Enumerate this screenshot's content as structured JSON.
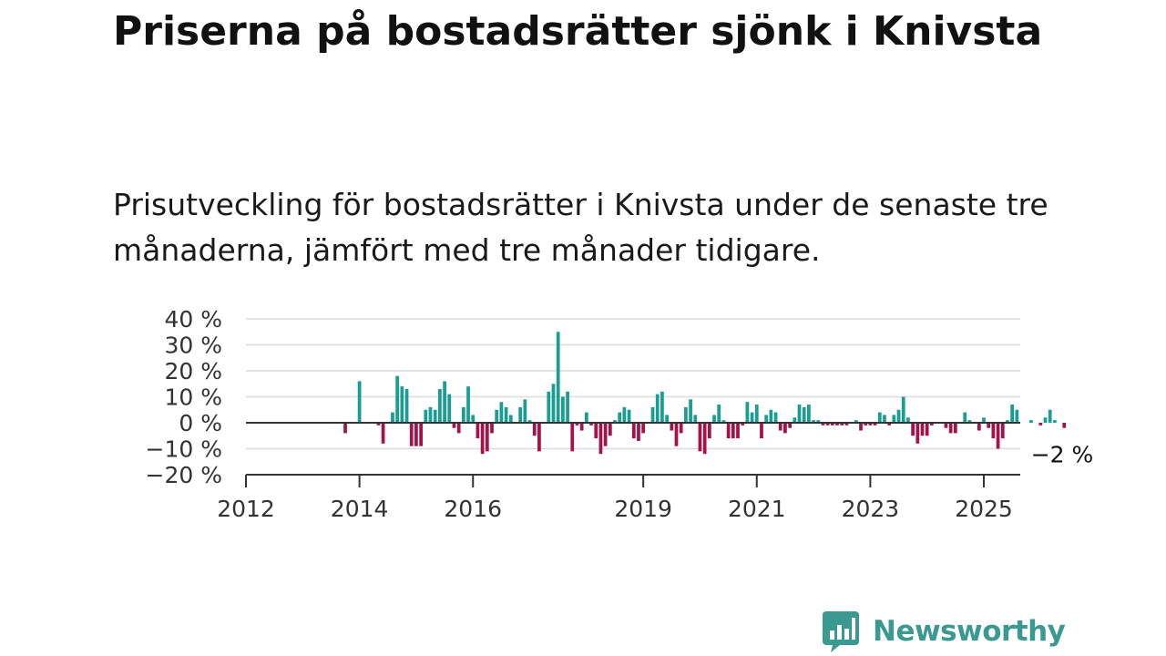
{
  "header": {
    "title": "Priserna på bostadsrätter sjönk i Knivsta",
    "subtitle": "Prisutveckling för bostadsrätter i Knivsta under de senaste tre månaderna, jämfört med tre månader tidigare."
  },
  "chart_data": {
    "type": "bar",
    "title": "",
    "xlabel": "",
    "ylabel": "",
    "ylim": [
      -20,
      40
    ],
    "y_unit": "%",
    "yticks": [
      {
        "value": 40,
        "label": "40 %"
      },
      {
        "value": 30,
        "label": "30 %"
      },
      {
        "value": 20,
        "label": "20 %"
      },
      {
        "value": 10,
        "label": "10 %"
      },
      {
        "value": 0,
        "label": "0 %"
      },
      {
        "value": -10,
        "label": "−10 %"
      },
      {
        "value": -20,
        "label": "−20 %"
      }
    ],
    "xticks": [
      {
        "date": "2012-01",
        "label": "2012"
      },
      {
        "date": "2014-01",
        "label": "2014"
      },
      {
        "date": "2016-01",
        "label": "2016"
      },
      {
        "date": "2019-01",
        "label": "2019"
      },
      {
        "date": "2021-01",
        "label": "2021"
      },
      {
        "date": "2023-01",
        "label": "2023"
      },
      {
        "date": "2025-01",
        "label": "2025"
      }
    ],
    "grid": true,
    "colors": {
      "positive": "#1a9d92",
      "negative": "#a3134a"
    },
    "series": [
      {
        "start": "2012-01",
        "frequency": "monthly",
        "values": [
          0,
          0,
          0,
          0,
          0,
          0,
          0,
          0,
          0,
          0,
          0,
          0,
          0,
          0,
          0,
          0,
          0,
          0,
          0,
          0,
          0,
          -4,
          0,
          0,
          16,
          0,
          0,
          0,
          -1,
          -8,
          0,
          4,
          18,
          14,
          13,
          -9,
          -9,
          -9,
          5,
          6,
          5,
          13,
          16,
          11,
          -2,
          -4,
          6,
          14,
          3,
          -6,
          -12,
          -11,
          -4,
          5,
          8,
          6,
          3,
          0,
          6,
          9,
          1,
          -5,
          -11,
          0,
          12,
          15,
          35,
          10,
          12,
          -11,
          -1,
          -3,
          4,
          -1,
          -6,
          -12,
          -9,
          -5,
          1,
          4,
          6,
          5,
          -6,
          -7,
          -4,
          0,
          6,
          11,
          12,
          3,
          -3,
          -9,
          -4,
          6,
          9,
          3,
          -11,
          -12,
          -6,
          3,
          7,
          1,
          -6,
          -6,
          -6,
          -1,
          8,
          4,
          7,
          -6,
          3,
          5,
          4,
          -3,
          -4,
          -2,
          2,
          7,
          6,
          7,
          1,
          1,
          -1,
          -1,
          -1,
          -1,
          -1,
          -1,
          0,
          1,
          -3,
          -1,
          -1,
          -1,
          4,
          3,
          -1,
          3,
          5,
          10,
          2,
          -5,
          -8,
          -5,
          -5,
          -1,
          0,
          0,
          -2,
          -4,
          -4,
          0,
          4,
          1,
          0,
          -3,
          2,
          -2,
          -6,
          -10,
          -6,
          1,
          7,
          5,
          0,
          0,
          1,
          0,
          -1,
          2,
          5,
          1,
          0,
          -2
        ]
      }
    ],
    "annotations": [
      {
        "text": "−2 %",
        "target": "last"
      }
    ]
  },
  "branding": {
    "name": "Newsworthy",
    "color": "#3a9990"
  }
}
